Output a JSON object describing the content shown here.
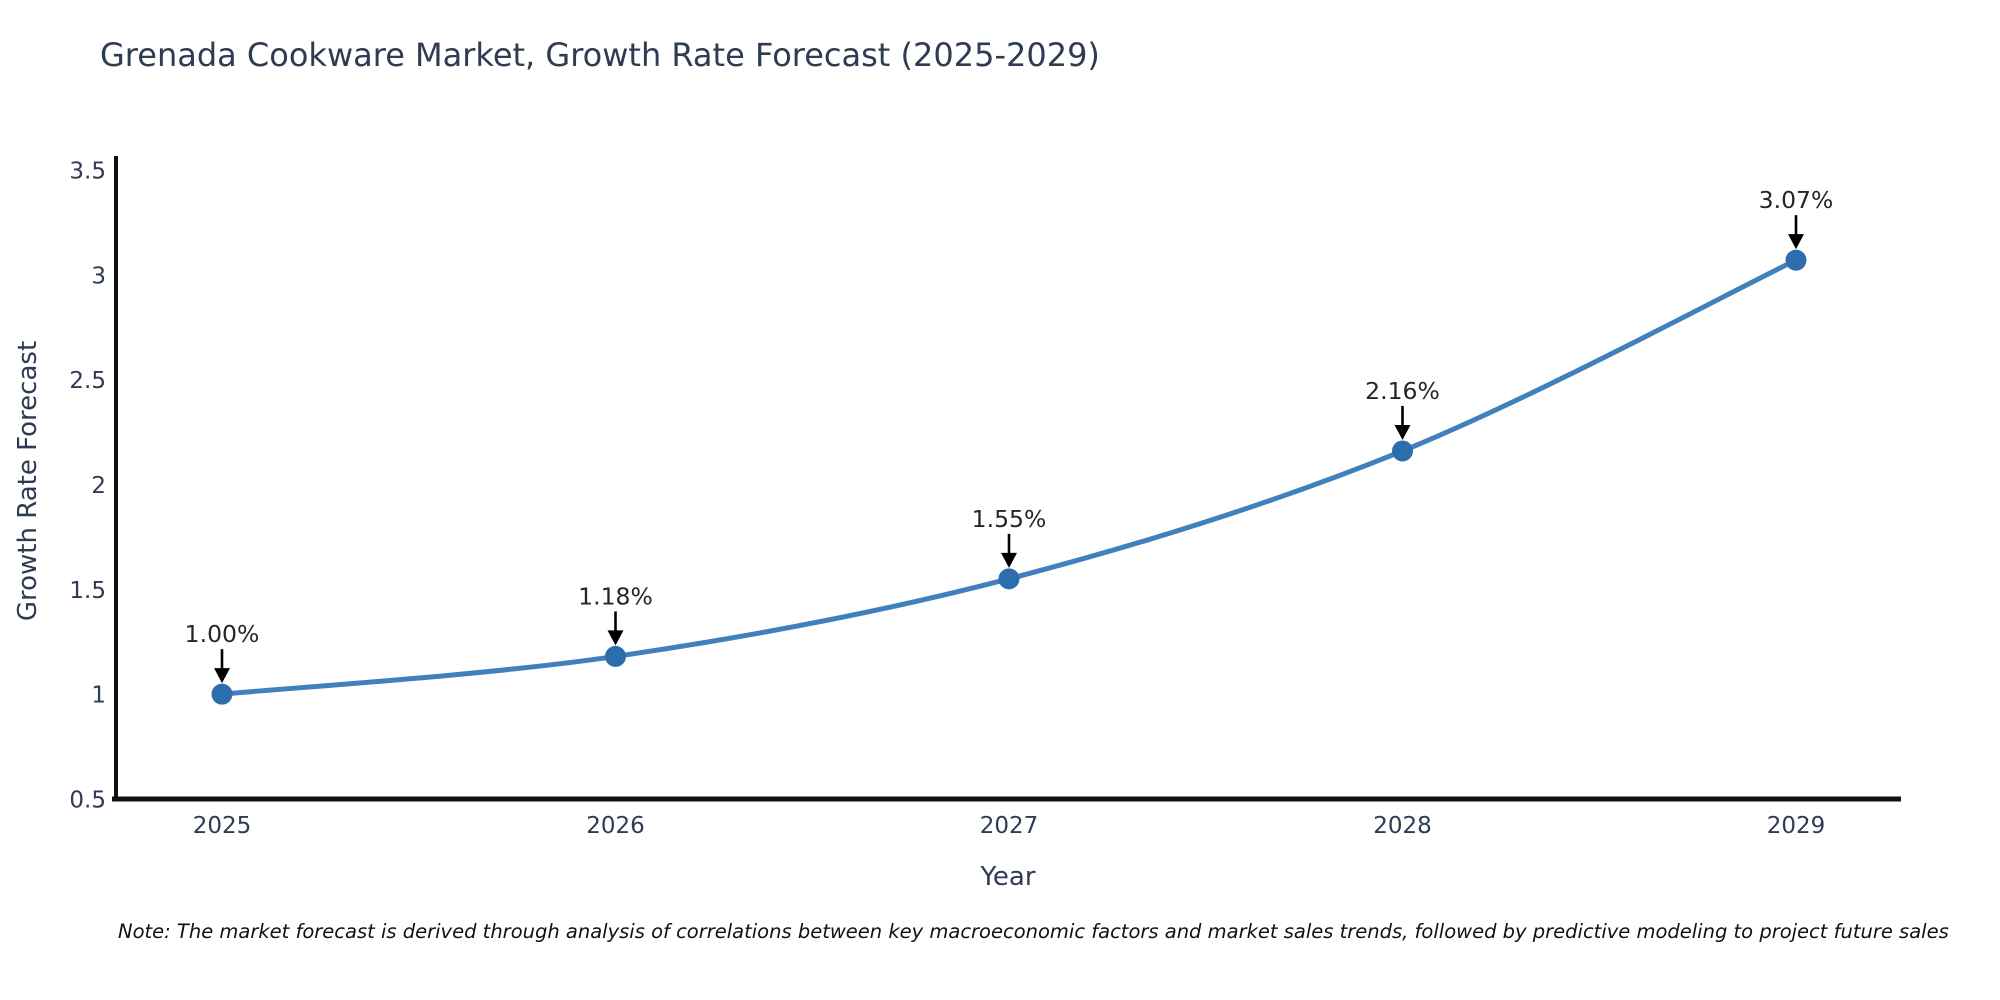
{
  "chart_data": {
    "type": "line",
    "title": "Grenada Cookware Market, Growth Rate Forecast (2025-2029)",
    "xlabel": "Year",
    "ylabel": "Growth Rate Forecast",
    "categories": [
      2025,
      2026,
      2027,
      2028,
      2029
    ],
    "series": [
      {
        "name": "Growth Rate Forecast",
        "values": [
          1.0,
          1.18,
          1.55,
          2.16,
          3.07
        ],
        "point_labels": [
          "1.00%",
          "1.18%",
          "1.55%",
          "2.16%",
          "3.07%"
        ]
      }
    ],
    "ylim": [
      0.5,
      3.5
    ],
    "yticks": [
      0.5,
      1,
      1.5,
      2,
      2.5,
      3,
      3.5
    ],
    "grid": false,
    "legend_position": "none",
    "marker_style": "filled-circle",
    "annotation_arrow": "down",
    "colors": {
      "line": "#4080bd",
      "marker": "#2e6dad",
      "text": "#2e3b52",
      "annotation": "#262626",
      "spine": "#111111"
    }
  },
  "note": "Note: The market forecast is derived through analysis of correlations between key macroeconomic factors and market sales trends, followed by predictive modeling to project future sales"
}
